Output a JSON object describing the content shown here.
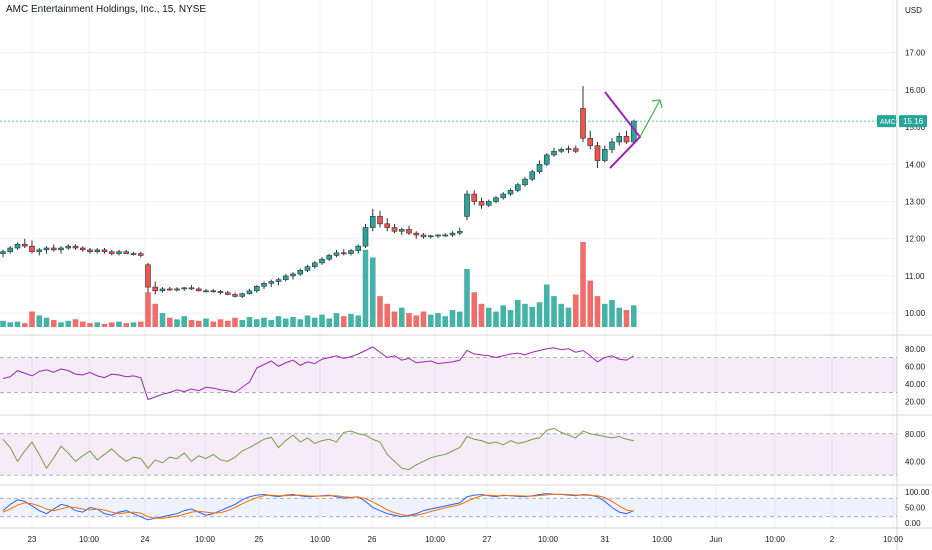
{
  "chart_data": {
    "type": "candlestick",
    "title": "AMC Entertainment Holdings, Inc., 15, NYSE",
    "currency": "USD",
    "ticker": "AMC",
    "last_price": "15.16",
    "colors": {
      "up": "#26a69a",
      "down": "#ef5350",
      "pattern": "#9c27b0",
      "arrow": "#4caf50",
      "rsi": "#9c27b0",
      "osc2": "#7a9a4a",
      "stoch_k": "#2962ff",
      "stoch_d": "#ff6d00"
    },
    "x_tick_labels": [
      "23",
      "10:00",
      "24",
      "10:00",
      "25",
      "10:00",
      "26",
      "10:00",
      "27",
      "10:00",
      "31",
      "10:00",
      "Jun",
      "10:00",
      "2",
      "10:00"
    ],
    "price_axis": {
      "min": 9.6,
      "max": 18.2,
      "ticks": [
        "10.00",
        "11.00",
        "12.00",
        "13.00",
        "14.00",
        "15.00",
        "16.00",
        "17.00"
      ]
    },
    "candles": [
      [
        11.6,
        11.7,
        11.5,
        11.65
      ],
      [
        11.65,
        11.8,
        11.6,
        11.75
      ],
      [
        11.75,
        11.9,
        11.7,
        11.85
      ],
      [
        11.85,
        12.0,
        11.75,
        11.8
      ],
      [
        11.8,
        11.95,
        11.6,
        11.65
      ],
      [
        11.65,
        11.75,
        11.55,
        11.7
      ],
      [
        11.7,
        11.8,
        11.6,
        11.75
      ],
      [
        11.75,
        11.85,
        11.65,
        11.7
      ],
      [
        11.7,
        11.8,
        11.6,
        11.75
      ],
      [
        11.75,
        11.85,
        11.7,
        11.8
      ],
      [
        11.8,
        11.85,
        11.7,
        11.75
      ],
      [
        11.75,
        11.8,
        11.65,
        11.7
      ],
      [
        11.7,
        11.75,
        11.6,
        11.65
      ],
      [
        11.65,
        11.75,
        11.6,
        11.7
      ],
      [
        11.7,
        11.75,
        11.6,
        11.65
      ],
      [
        11.65,
        11.7,
        11.55,
        11.6
      ],
      [
        11.6,
        11.7,
        11.55,
        11.65
      ],
      [
        11.65,
        11.7,
        11.6,
        11.6
      ],
      [
        11.6,
        11.65,
        11.55,
        11.6
      ],
      [
        11.6,
        11.65,
        11.5,
        11.55
      ],
      [
        11.3,
        11.35,
        10.55,
        10.7
      ],
      [
        10.7,
        10.85,
        10.5,
        10.6
      ],
      [
        10.6,
        10.7,
        10.55,
        10.65
      ],
      [
        10.65,
        10.7,
        10.6,
        10.62
      ],
      [
        10.62,
        10.7,
        10.58,
        10.65
      ],
      [
        10.65,
        10.7,
        10.6,
        10.68
      ],
      [
        10.68,
        10.75,
        10.62,
        10.65
      ],
      [
        10.65,
        10.7,
        10.58,
        10.6
      ],
      [
        10.6,
        10.65,
        10.55,
        10.6
      ],
      [
        10.6,
        10.65,
        10.55,
        10.58
      ],
      [
        10.58,
        10.62,
        10.5,
        10.55
      ],
      [
        10.55,
        10.6,
        10.48,
        10.5
      ],
      [
        10.5,
        10.55,
        10.42,
        10.45
      ],
      [
        10.45,
        10.55,
        10.4,
        10.52
      ],
      [
        10.52,
        10.65,
        10.5,
        10.6
      ],
      [
        10.6,
        10.75,
        10.55,
        10.72
      ],
      [
        10.72,
        10.85,
        10.65,
        10.8
      ],
      [
        10.8,
        10.9,
        10.7,
        10.85
      ],
      [
        10.85,
        10.95,
        10.75,
        10.9
      ],
      [
        10.9,
        11.05,
        10.85,
        11.0
      ],
      [
        11.0,
        11.1,
        10.9,
        11.05
      ],
      [
        11.05,
        11.2,
        11.0,
        11.15
      ],
      [
        11.15,
        11.3,
        11.1,
        11.25
      ],
      [
        11.25,
        11.4,
        11.2,
        11.35
      ],
      [
        11.35,
        11.5,
        11.3,
        11.45
      ],
      [
        11.45,
        11.6,
        11.4,
        11.55
      ],
      [
        11.55,
        11.7,
        11.5,
        11.62
      ],
      [
        11.62,
        11.72,
        11.55,
        11.6
      ],
      [
        11.6,
        11.72,
        11.55,
        11.68
      ],
      [
        11.68,
        11.85,
        11.6,
        11.8
      ],
      [
        11.8,
        12.4,
        11.75,
        12.3
      ],
      [
        12.3,
        12.8,
        12.2,
        12.6
      ],
      [
        12.6,
        12.75,
        12.3,
        12.4
      ],
      [
        12.4,
        12.55,
        12.2,
        12.3
      ],
      [
        12.3,
        12.4,
        12.15,
        12.2
      ],
      [
        12.2,
        12.3,
        12.1,
        12.25
      ],
      [
        12.25,
        12.35,
        12.1,
        12.15
      ],
      [
        12.15,
        12.2,
        12.0,
        12.1
      ],
      [
        12.1,
        12.15,
        12.0,
        12.05
      ],
      [
        12.05,
        12.1,
        12.0,
        12.08
      ],
      [
        12.08,
        12.12,
        12.02,
        12.1
      ],
      [
        12.1,
        12.15,
        12.05,
        12.1
      ],
      [
        12.1,
        12.2,
        12.05,
        12.15
      ],
      [
        12.15,
        12.3,
        12.1,
        12.2
      ],
      [
        12.6,
        13.3,
        12.5,
        13.2
      ],
      [
        13.2,
        13.3,
        12.9,
        13.0
      ],
      [
        13.0,
        13.1,
        12.8,
        12.9
      ],
      [
        12.9,
        13.05,
        12.85,
        13.0
      ],
      [
        13.0,
        13.15,
        12.95,
        13.1
      ],
      [
        13.1,
        13.25,
        13.05,
        13.2
      ],
      [
        13.2,
        13.35,
        13.15,
        13.3
      ],
      [
        13.3,
        13.5,
        13.25,
        13.45
      ],
      [
        13.45,
        13.65,
        13.4,
        13.6
      ],
      [
        13.6,
        13.85,
        13.55,
        13.8
      ],
      [
        13.8,
        14.1,
        13.75,
        14.0
      ],
      [
        14.0,
        14.3,
        13.95,
        14.25
      ],
      [
        14.25,
        14.45,
        14.2,
        14.35
      ],
      [
        14.35,
        14.45,
        14.3,
        14.4
      ],
      [
        14.4,
        14.5,
        14.3,
        14.42
      ],
      [
        14.42,
        14.5,
        14.3,
        14.35
      ],
      [
        15.5,
        16.1,
        14.6,
        14.7
      ],
      [
        14.7,
        14.9,
        14.4,
        14.5
      ],
      [
        14.5,
        14.6,
        13.9,
        14.1
      ],
      [
        14.1,
        14.5,
        14.05,
        14.4
      ],
      [
        14.4,
        14.7,
        14.3,
        14.6
      ],
      [
        14.6,
        14.85,
        14.5,
        14.75
      ],
      [
        14.75,
        14.9,
        14.55,
        14.6
      ],
      [
        14.6,
        15.2,
        14.55,
        15.16
      ]
    ],
    "volume": [
      8,
      6,
      7,
      5,
      20,
      15,
      12,
      9,
      6,
      8,
      10,
      7,
      5,
      6,
      4,
      6,
      7,
      5,
      6,
      7,
      45,
      30,
      18,
      12,
      10,
      14,
      9,
      8,
      11,
      7,
      10,
      8,
      12,
      9,
      13,
      10,
      12,
      9,
      14,
      11,
      13,
      10,
      15,
      12,
      16,
      11,
      18,
      14,
      17,
      15,
      100,
      90,
      40,
      30,
      20,
      25,
      18,
      15,
      20,
      16,
      18,
      14,
      22,
      20,
      75,
      45,
      30,
      25,
      20,
      28,
      22,
      35,
      30,
      26,
      32,
      55,
      40,
      30,
      25,
      42,
      110,
      60,
      40,
      30,
      35,
      25,
      22,
      28
    ],
    "rsi": {
      "ticks": [
        "80.00",
        "60.00",
        "40.00",
        "20.00"
      ],
      "band": [
        30,
        70
      ],
      "values": [
        46,
        48,
        55,
        52,
        49,
        54,
        56,
        53,
        57,
        55,
        51,
        50,
        53,
        49,
        47,
        51,
        50,
        48,
        49,
        47,
        22,
        25,
        28,
        30,
        33,
        31,
        34,
        32,
        36,
        35,
        33,
        32,
        30,
        36,
        42,
        58,
        62,
        66,
        60,
        64,
        67,
        61,
        65,
        63,
        68,
        70,
        72,
        69,
        71,
        74,
        78,
        82,
        76,
        70,
        72,
        67,
        69,
        64,
        65,
        66,
        63,
        64,
        65,
        67,
        78,
        74,
        73,
        72,
        70,
        72,
        74,
        75,
        73,
        76,
        78,
        80,
        81,
        79,
        80,
        76,
        78,
        72,
        65,
        70,
        72,
        68,
        67,
        72
      ]
    },
    "osc2": {
      "ticks": [
        "80.00",
        "40.00"
      ],
      "band": [
        20,
        80
      ],
      "values": [
        72,
        60,
        40,
        55,
        68,
        50,
        30,
        45,
        62,
        52,
        40,
        48,
        55,
        42,
        50,
        58,
        48,
        40,
        46,
        44,
        30,
        42,
        38,
        46,
        44,
        52,
        40,
        48,
        44,
        50,
        42,
        40,
        46,
        55,
        60,
        66,
        72,
        75,
        60,
        70,
        78,
        68,
        74,
        66,
        70,
        72,
        68,
        82,
        84,
        80,
        78,
        72,
        68,
        50,
        40,
        30,
        28,
        35,
        40,
        45,
        48,
        50,
        55,
        60,
        76,
        72,
        70,
        66,
        68,
        64,
        70,
        66,
        68,
        72,
        74,
        85,
        88,
        82,
        78,
        74,
        84,
        80,
        78,
        76,
        74,
        76,
        72,
        70
      ]
    },
    "stoch": {
      "ticks": [
        "100.00",
        "50.00",
        "0.00"
      ],
      "k": [
        40,
        60,
        75,
        70,
        55,
        40,
        30,
        45,
        60,
        55,
        40,
        35,
        50,
        45,
        30,
        25,
        35,
        40,
        30,
        20,
        10,
        15,
        20,
        25,
        30,
        40,
        45,
        35,
        25,
        30,
        40,
        50,
        60,
        75,
        85,
        90,
        92,
        88,
        85,
        90,
        92,
        88,
        85,
        86,
        88,
        90,
        85,
        80,
        82,
        85,
        70,
        50,
        40,
        30,
        25,
        20,
        25,
        30,
        40,
        45,
        50,
        55,
        60,
        65,
        85,
        90,
        92,
        88,
        85,
        90,
        88,
        86,
        85,
        88,
        92,
        95,
        93,
        92,
        90,
        88,
        92,
        90,
        85,
        70,
        50,
        35,
        30,
        40
      ],
      "d": [
        35,
        45,
        58,
        65,
        62,
        55,
        45,
        40,
        45,
        52,
        50,
        45,
        42,
        45,
        42,
        35,
        30,
        33,
        35,
        32,
        20,
        15,
        15,
        18,
        22,
        28,
        35,
        38,
        35,
        32,
        33,
        40,
        50,
        62,
        73,
        82,
        88,
        90,
        88,
        88,
        89,
        90,
        88,
        87,
        87,
        88,
        88,
        85,
        83,
        84,
        79,
        68,
        56,
        42,
        33,
        27,
        23,
        25,
        30,
        37,
        43,
        49,
        54,
        59,
        70,
        80,
        88,
        90,
        88,
        88,
        89,
        88,
        87,
        87,
        89,
        91,
        93,
        93,
        92,
        90,
        90,
        89,
        88,
        82,
        70,
        55,
        42,
        38
      ]
    },
    "axis_right": {
      "osc3_ticks": [
        "100.00",
        "50.00",
        "0.00"
      ]
    }
  }
}
